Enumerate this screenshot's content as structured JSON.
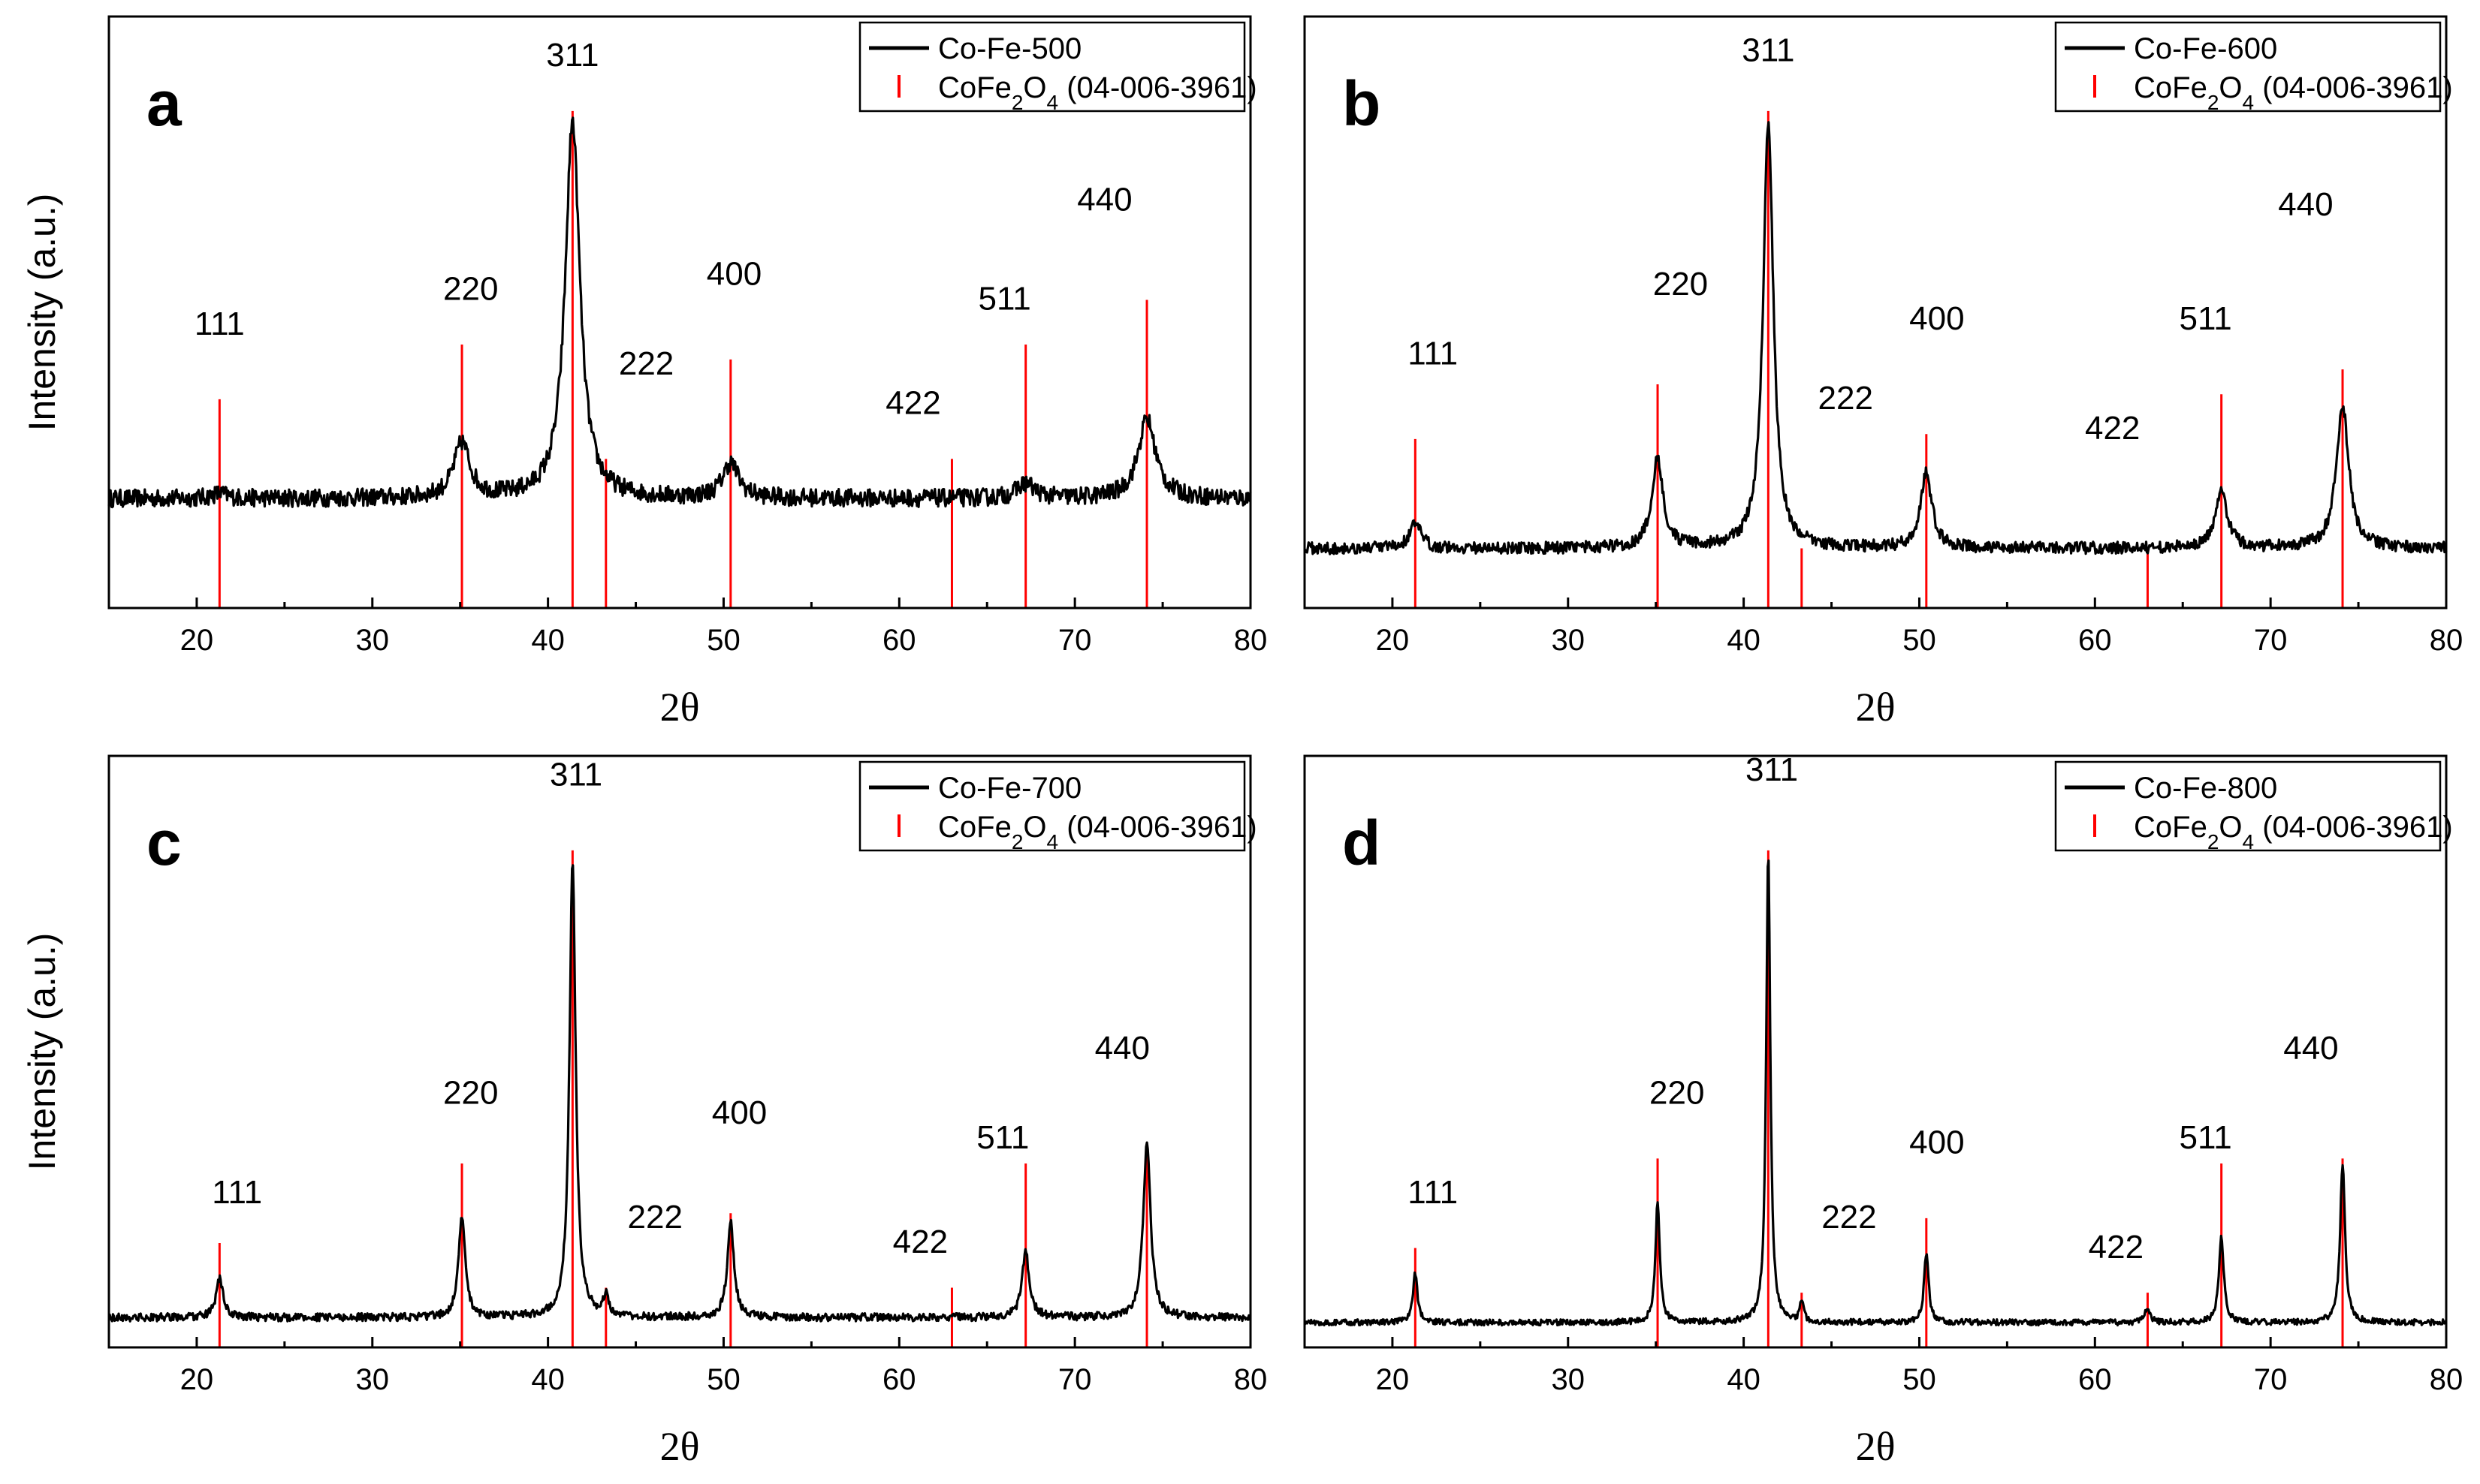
{
  "chart_data": [
    {
      "type": "line",
      "panel_label": "a",
      "xlabel": "2θ",
      "ylabel": "Intensity (a.u.)",
      "xlim": [
        15,
        80
      ],
      "x_ticks": [
        "20",
        "30",
        "40",
        "50",
        "60",
        "70",
        "80"
      ],
      "series": [
        {
          "name": "Co-Fe-500",
          "kind": "pattern",
          "baseline": 0.22,
          "noise": 0.018,
          "width_factor": 1.0,
          "peak_heights": [
            0.23,
            0.33,
            0.98,
            0.05,
            0.29,
            0.04,
            0.25,
            0.38
          ]
        }
      ],
      "reference": {
        "name_prefix": "CoFe",
        "name_sub1": "2",
        "name_mid": "O",
        "name_sub2": "4",
        "name_suffix": " (04-006-3961)",
        "positions": [
          21.3,
          35.1,
          41.4,
          43.3,
          50.4,
          63.0,
          67.2,
          74.1
        ],
        "heights": [
          0.42,
          0.53,
          1.0,
          0.3,
          0.5,
          0.3,
          0.53,
          0.62
        ]
      },
      "peak_labels": [
        {
          "text": "111",
          "x": 21.3,
          "y": 0.55
        },
        {
          "text": "220",
          "x": 35.6,
          "y": 0.62
        },
        {
          "text": "311",
          "x": 41.4,
          "y": 1.09
        },
        {
          "text": "222",
          "x": 45.6,
          "y": 0.47
        },
        {
          "text": "400",
          "x": 50.6,
          "y": 0.65
        },
        {
          "text": "422",
          "x": 60.8,
          "y": 0.39
        },
        {
          "text": "511",
          "x": 66.0,
          "y": 0.6
        },
        {
          "text": "440",
          "x": 71.7,
          "y": 0.8
        }
      ],
      "label_y_max": 1.19
    },
    {
      "type": "line",
      "panel_label": "b",
      "xlabel": "2θ",
      "ylabel": "",
      "xlim": [
        15,
        80
      ],
      "x_ticks": [
        "20",
        "30",
        "40",
        "50",
        "60",
        "70",
        "80"
      ],
      "series": [
        {
          "name": "Co-Fe-600",
          "kind": "pattern",
          "baseline": 0.12,
          "noise": 0.012,
          "width_factor": 0.7,
          "peak_heights": [
            0.17,
            0.3,
            0.98,
            0.09,
            0.27,
            0.06,
            0.23,
            0.41
          ]
        }
      ],
      "reference": {
        "name_prefix": "CoFe",
        "name_sub1": "2",
        "name_mid": "O",
        "name_sub2": "4",
        "name_suffix": " (04-006-3961)",
        "positions": [
          21.3,
          35.1,
          41.4,
          43.3,
          50.4,
          63.0,
          67.2,
          74.1
        ],
        "heights": [
          0.34,
          0.45,
          1.0,
          0.12,
          0.35,
          0.12,
          0.43,
          0.48
        ]
      },
      "peak_labels": [
        {
          "text": "111",
          "x": 22.3,
          "y": 0.49
        },
        {
          "text": "220",
          "x": 36.4,
          "y": 0.63
        },
        {
          "text": "311",
          "x": 41.4,
          "y": 1.1
        },
        {
          "text": "222",
          "x": 45.8,
          "y": 0.4
        },
        {
          "text": "400",
          "x": 51.0,
          "y": 0.56
        },
        {
          "text": "422",
          "x": 61.0,
          "y": 0.34
        },
        {
          "text": "511",
          "x": 66.3,
          "y": 0.56
        },
        {
          "text": "440",
          "x": 72.0,
          "y": 0.79
        }
      ],
      "label_y_max": 1.19
    },
    {
      "type": "line",
      "panel_label": "c",
      "xlabel": "2θ",
      "ylabel": "Intensity (a.u.)",
      "xlim": [
        15,
        80
      ],
      "x_ticks": [
        "20",
        "30",
        "40",
        "50",
        "60",
        "70",
        "80"
      ],
      "series": [
        {
          "name": "Co-Fe-700",
          "kind": "pattern",
          "baseline": 0.06,
          "noise": 0.008,
          "width_factor": 0.42,
          "peak_heights": [
            0.14,
            0.26,
            0.98,
            0.1,
            0.25,
            0.06,
            0.19,
            0.41
          ]
        }
      ],
      "reference": {
        "name_prefix": "CoFe",
        "name_sub1": "2",
        "name_mid": "O",
        "name_sub2": "4",
        "name_suffix": " (04-006-3961)",
        "positions": [
          21.3,
          35.1,
          41.4,
          43.3,
          50.4,
          63.0,
          67.2,
          74.1
        ],
        "heights": [
          0.21,
          0.37,
          1.0,
          0.12,
          0.27,
          0.12,
          0.37,
          0.4
        ]
      },
      "peak_labels": [
        {
          "text": "111",
          "x": 22.3,
          "y": 0.29
        },
        {
          "text": "220",
          "x": 35.6,
          "y": 0.49
        },
        {
          "text": "311",
          "x": 41.6,
          "y": 1.13
        },
        {
          "text": "222",
          "x": 46.1,
          "y": 0.24
        },
        {
          "text": "400",
          "x": 50.9,
          "y": 0.45
        },
        {
          "text": "422",
          "x": 61.2,
          "y": 0.19
        },
        {
          "text": "511",
          "x": 65.9,
          "y": 0.4
        },
        {
          "text": "440",
          "x": 72.7,
          "y": 0.58
        }
      ],
      "label_y_max": 1.19
    },
    {
      "type": "line",
      "panel_label": "d",
      "xlabel": "2θ",
      "ylabel": "",
      "xlim": [
        15,
        80
      ],
      "x_ticks": [
        "20",
        "30",
        "40",
        "50",
        "60",
        "70",
        "80"
      ],
      "series": [
        {
          "name": "Co-Fe-800",
          "kind": "pattern",
          "baseline": 0.05,
          "noise": 0.006,
          "width_factor": 0.28,
          "peak_heights": [
            0.15,
            0.29,
            1.0,
            0.09,
            0.19,
            0.08,
            0.22,
            0.37
          ]
        }
      ],
      "reference": {
        "name_prefix": "CoFe",
        "name_sub1": "2",
        "name_mid": "O",
        "name_sub2": "4",
        "name_suffix": " (04-006-3961)",
        "positions": [
          21.3,
          35.1,
          41.4,
          43.3,
          50.4,
          63.0,
          67.2,
          74.1
        ],
        "heights": [
          0.2,
          0.38,
          1.0,
          0.11,
          0.26,
          0.11,
          0.37,
          0.38
        ]
      },
      "peak_labels": [
        {
          "text": "111",
          "x": 22.3,
          "y": 0.29
        },
        {
          "text": "220",
          "x": 36.2,
          "y": 0.49
        },
        {
          "text": "311",
          "x": 41.6,
          "y": 1.14
        },
        {
          "text": "222",
          "x": 46.0,
          "y": 0.24
        },
        {
          "text": "400",
          "x": 51.0,
          "y": 0.39
        },
        {
          "text": "422",
          "x": 61.2,
          "y": 0.18
        },
        {
          "text": "511",
          "x": 66.3,
          "y": 0.4
        },
        {
          "text": "440",
          "x": 72.3,
          "y": 0.58
        }
      ],
      "label_y_max": 1.19
    }
  ],
  "colors": {
    "pattern": "#000000",
    "reference": "#ff0000",
    "axis": "#000000",
    "background": "#ffffff"
  }
}
